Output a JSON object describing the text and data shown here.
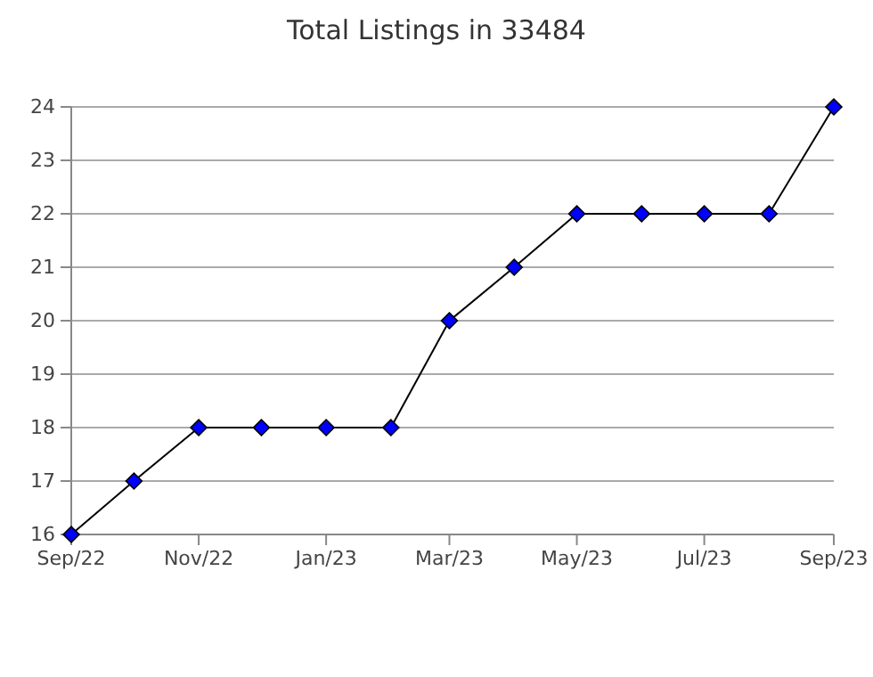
{
  "chart_data": {
    "type": "line",
    "title": "Total Listings in 33484",
    "x": [
      "2022-09",
      "2022-10",
      "2022-11",
      "2022-12",
      "2023-01",
      "2023-02",
      "2023-03",
      "2023-04",
      "2023-05",
      "2023-06",
      "2023-07",
      "2023-08",
      "2023-09"
    ],
    "series": [
      {
        "color": "#0000ff",
        "values": [
          16,
          17,
          18,
          18,
          18,
          18,
          20,
          21,
          22,
          22,
          22,
          22,
          24
        ]
      }
    ],
    "xlim": [
      "2022-09",
      "2023-09"
    ],
    "xticks": [
      {
        "value": "2022-09",
        "label": "Sep/22"
      },
      {
        "value": "2022-11",
        "label": "Nov/22"
      },
      {
        "value": "2023-01",
        "label": "Jan/23"
      },
      {
        "value": "2023-03",
        "label": "Mar/23"
      },
      {
        "value": "2023-05",
        "label": "May/23"
      },
      {
        "value": "2023-07",
        "label": "Jul/23"
      },
      {
        "value": "2023-09",
        "label": "Sep/23"
      }
    ],
    "ylim": [
      16,
      24
    ],
    "yticks": [
      16,
      17,
      18,
      19,
      20,
      21,
      22,
      23,
      24
    ],
    "grid": "y",
    "marker": "diamond",
    "line_style": "solid"
  }
}
